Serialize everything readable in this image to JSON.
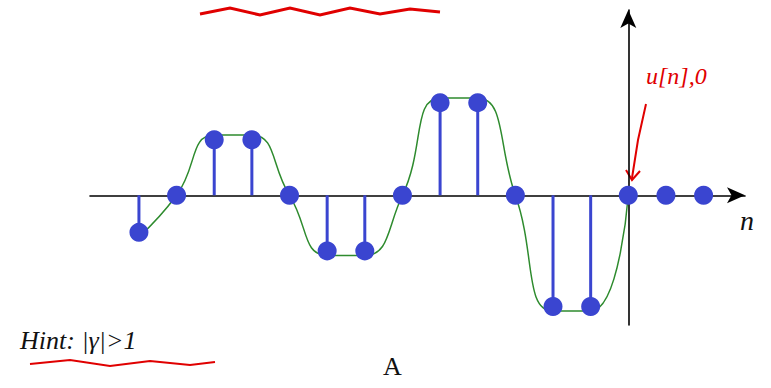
{
  "chart_data": {
    "type": "stem",
    "x_label": "n",
    "x": [
      -13,
      -12,
      -11,
      -10,
      -9,
      -8,
      -7,
      -6,
      -5,
      -4,
      -3,
      -2,
      -1,
      0,
      1,
      2
    ],
    "series": [
      {
        "type": "stem",
        "color": "#3a45d0",
        "marker": "circle",
        "values": [
          -0.4,
          0,
          0.6,
          0.6,
          0,
          -0.6,
          -0.6,
          0,
          1.0,
          1.0,
          0,
          -1.2,
          -1.2,
          0,
          0,
          0
        ]
      },
      {
        "type": "line",
        "color": "#2e8b2e",
        "line_style": "smooth",
        "values": [
          -0.45,
          0,
          0.65,
          0.65,
          0,
          -0.65,
          -0.65,
          0,
          1.05,
          1.05,
          0,
          -1.25,
          -1.25,
          0,
          null,
          null
        ]
      }
    ],
    "xlim": [
      -14.3,
      3.1
    ],
    "ylim": [
      -1.4,
      2.0
    ],
    "grid": false,
    "tick_labels": false,
    "annotations": [
      {
        "text": "u[n],0",
        "color": "#e00000"
      },
      {
        "text": "Hint: |γ|>1",
        "color": "#111111"
      },
      {
        "text": "A",
        "color": "#111111"
      }
    ]
  }
}
